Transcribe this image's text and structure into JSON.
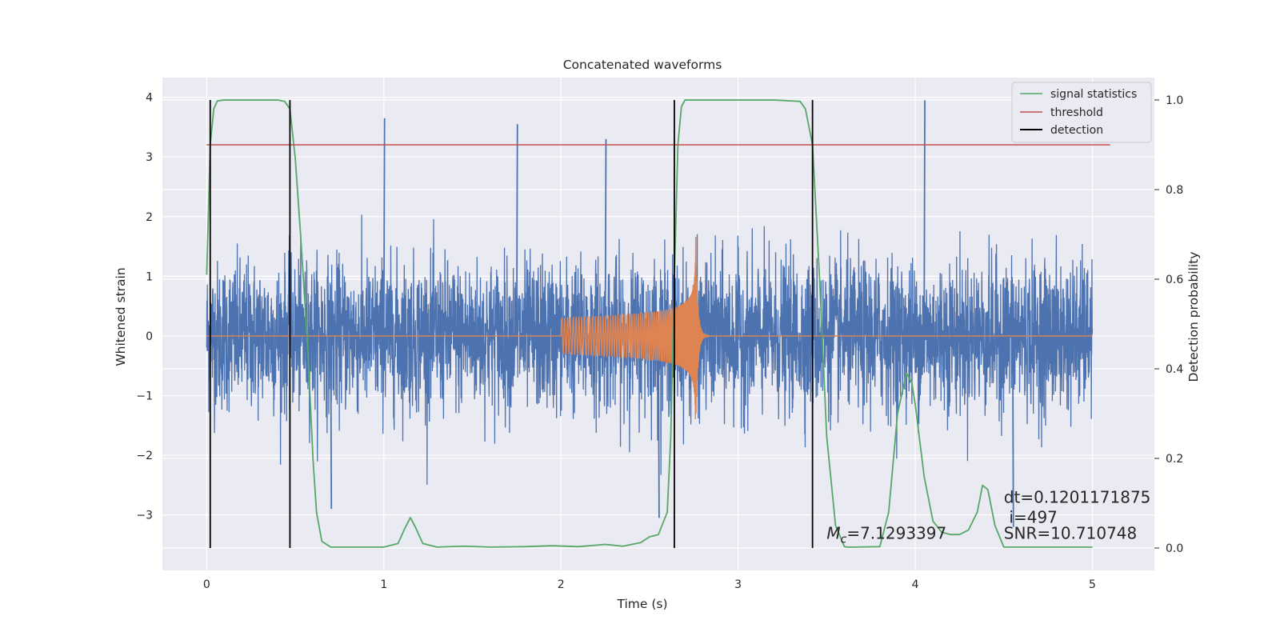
{
  "chart_data": {
    "type": "line",
    "title": "Concatenated waveforms",
    "xlabel": "Time (s)",
    "ylabel": "Whitened strain",
    "y2label": "Detection probability",
    "xlim": [
      -0.25,
      5.35
    ],
    "ylim": [
      -3.93,
      4.33
    ],
    "y2lim": [
      -0.05,
      1.05
    ],
    "x_ticks": [
      "0",
      "1",
      "2",
      "3",
      "4",
      "5"
    ],
    "y_ticks": [
      "4",
      "3",
      "2",
      "1",
      "0",
      "−1",
      "−2",
      "−3"
    ],
    "y2_ticks": [
      "1.0",
      "0.8",
      "0.6",
      "0.4",
      "0.2",
      "0.0"
    ],
    "grid": true,
    "legend": {
      "placement": "top-right",
      "entries": [
        {
          "label": "signal statistics",
          "color": "#55a868"
        },
        {
          "label": "threshold",
          "color": "#c44e52"
        },
        {
          "label": "detection",
          "color": "#000000"
        }
      ]
    },
    "series": [
      {
        "name": "",
        "kind": "noisy strain",
        "axis": "left",
        "color": "#4c72b0",
        "x_range": [
          0,
          5
        ],
        "typical_envelope": 1.6,
        "peaks": [
          {
            "x": 1.0,
            "y": 3.65
          },
          {
            "x": 1.75,
            "y": 3.55
          },
          {
            "x": 2.25,
            "y": 3.3
          },
          {
            "x": 4.05,
            "y": 3.95
          },
          {
            "x": 2.55,
            "y": -3.05
          },
          {
            "x": 4.55,
            "y": -3.2
          },
          {
            "x": 0.7,
            "y": -2.9
          }
        ]
      },
      {
        "name": "",
        "kind": "injected chirp",
        "axis": "left",
        "color": "#dd8452",
        "x_range": [
          0,
          5
        ],
        "chirp_start": 2.0,
        "chirp_merger": 2.76,
        "start_amplitude": 0.3,
        "peak_amplitude": 1.8,
        "ringdown_end": 3.0
      },
      {
        "name": "signal statistics",
        "axis": "right",
        "color": "#55a868",
        "x": [
          0.0,
          0.01,
          0.02,
          0.04,
          0.06,
          0.1,
          0.2,
          0.3,
          0.4,
          0.44,
          0.47,
          0.5,
          0.53,
          0.57,
          0.6,
          0.62,
          0.65,
          0.7,
          0.8,
          1.0,
          1.08,
          1.12,
          1.15,
          1.18,
          1.22,
          1.3,
          1.45,
          1.6,
          1.8,
          1.95,
          2.1,
          2.25,
          2.35,
          2.45,
          2.5,
          2.55,
          2.6,
          2.62,
          2.64,
          2.66,
          2.68,
          2.7,
          2.75,
          2.8,
          3.0,
          3.2,
          3.35,
          3.38,
          3.42,
          3.46,
          3.5,
          3.55,
          3.6,
          3.62,
          3.65,
          3.8,
          3.85,
          3.9,
          3.95,
          3.98,
          4.0,
          4.05,
          4.1,
          4.15,
          4.2,
          4.25,
          4.3,
          4.35,
          4.38,
          4.41,
          4.45,
          4.5,
          5.0
        ],
        "y": [
          0.61,
          0.75,
          0.9,
          0.98,
          0.998,
          1.0,
          1.0,
          1.0,
          1.0,
          0.997,
          0.98,
          0.87,
          0.7,
          0.45,
          0.2,
          0.08,
          0.015,
          0.002,
          0.002,
          0.002,
          0.01,
          0.045,
          0.068,
          0.045,
          0.01,
          0.002,
          0.004,
          0.002,
          0.003,
          0.005,
          0.003,
          0.008,
          0.004,
          0.012,
          0.025,
          0.03,
          0.08,
          0.25,
          0.6,
          0.9,
          0.985,
          1.0,
          1.0,
          1.0,
          1.0,
          1.0,
          0.997,
          0.98,
          0.9,
          0.6,
          0.25,
          0.05,
          0.003,
          0.002,
          0.002,
          0.003,
          0.08,
          0.3,
          0.39,
          0.37,
          0.32,
          0.16,
          0.06,
          0.035,
          0.03,
          0.03,
          0.04,
          0.08,
          0.14,
          0.13,
          0.05,
          0.002,
          0.002
        ]
      },
      {
        "name": "threshold",
        "axis": "right",
        "color": "#c44e52",
        "x": [
          0.0,
          5.1
        ],
        "y": [
          0.9,
          0.9
        ]
      },
      {
        "name": "detection",
        "axis": "right",
        "color": "#000000",
        "lines_x": [
          0.02,
          0.47,
          2.64,
          3.42
        ],
        "y_range": [
          0.0,
          1.0
        ]
      }
    ],
    "annotations": [
      {
        "text_symbol": "M",
        "text_sub": "c",
        "text": "=7.1293397",
        "x": 3.5,
        "y": -3.4
      },
      {
        "text": "dt=0.1201171875",
        "x": 4.5,
        "y": -2.8
      },
      {
        "text": "i=497",
        "x": 4.53,
        "y": -3.13
      },
      {
        "text": "SNR=10.710748",
        "x": 4.5,
        "y": -3.4
      }
    ]
  }
}
